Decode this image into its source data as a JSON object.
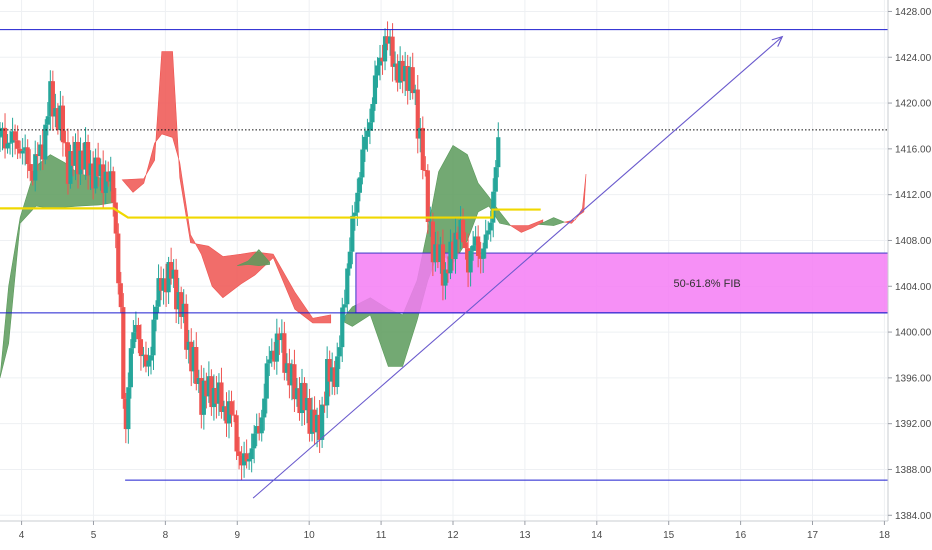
{
  "chart_data": {
    "type": "candlestick",
    "instrument_view": "price chart with Ichimoku cloud",
    "y_axis": {
      "ticks": [
        1428.0,
        1424.0,
        1420.0,
        1416.0,
        1412.0,
        1408.0,
        1404.0,
        1400.0,
        1396.0,
        1392.0,
        1388.0,
        1384.0
      ],
      "tick_labels": [
        "1428.00",
        "1424.00",
        "1420.00",
        "1416.00",
        "1412.00",
        "1408.00",
        "1404.00",
        "1400.00",
        "1396.00",
        "1392.00",
        "1388.00",
        "1384.00"
      ],
      "range": [
        1383.5,
        1429.0
      ]
    },
    "x_axis": {
      "tick_labels": [
        "4",
        "5",
        "8",
        "9",
        "10",
        "11",
        "12",
        "13",
        "14",
        "15",
        "16",
        "17",
        "18"
      ],
      "tick_positions": [
        0.5,
        1.5,
        2.5,
        3.5,
        4.5,
        5.5,
        6.5,
        7.5,
        8.5,
        9.5,
        10.5,
        11.5,
        12.5
      ],
      "range": [
        0.2,
        12.55
      ]
    },
    "levels": [
      {
        "name": "resistance",
        "value": 1426.41,
        "label": "1426.41",
        "style": "solid",
        "color": "#1c1ccf"
      },
      {
        "name": "current-price",
        "value": 1417.66,
        "label": "1417.66",
        "style": "dotted",
        "color": "#111111"
      },
      {
        "name": "support-high",
        "value": 1401.68,
        "label": "1401.68",
        "style": "solid",
        "color": "#1c1ccf"
      },
      {
        "name": "support-low",
        "value": 1387.07,
        "label": "1387.07",
        "style": "solid",
        "color": "#1c1ccf",
        "x_start": 1.94
      }
    ],
    "fib_zone": {
      "label": "50-61.8% FIB",
      "y_top": 1406.9,
      "y_bottom": 1401.68,
      "x_start": 5.15,
      "color": "#f57cf5"
    },
    "trendline": {
      "points": [
        [
          3.72,
          1385.5
        ],
        [
          11.08,
          1425.8
        ]
      ],
      "arrow": true,
      "color": "#6a5acd"
    },
    "baseline": {
      "color": "#f0d800",
      "points": [
        [
          0.2,
          1410.8
        ],
        [
          1.78,
          1410.8
        ],
        [
          1.98,
          1410.0
        ],
        [
          3.65,
          1410.0
        ],
        [
          7.05,
          1410.0
        ],
        [
          7.05,
          1410.7
        ],
        [
          7.72,
          1410.7
        ]
      ]
    },
    "cloud_segments": [
      {
        "type": "bullish",
        "color": "#5b9a5b",
        "upper": [
          [
            0.2,
            1396
          ],
          [
            0.32,
            1404
          ],
          [
            0.48,
            1410
          ],
          [
            0.7,
            1414.5
          ],
          [
            0.9,
            1415.5
          ],
          [
            1.1,
            1414.8
          ],
          [
            1.3,
            1413.8
          ],
          [
            1.58,
            1413.5
          ],
          [
            1.78,
            1413.3
          ]
        ],
        "lower": [
          [
            0.2,
            1396
          ],
          [
            0.32,
            1399
          ],
          [
            0.48,
            1409.5
          ],
          [
            0.7,
            1411
          ],
          [
            0.9,
            1410.8
          ],
          [
            1.1,
            1410.9
          ],
          [
            1.3,
            1411
          ],
          [
            1.58,
            1411.1
          ],
          [
            1.78,
            1411.3
          ]
        ]
      },
      {
        "type": "bearish",
        "color": "#ef5350",
        "upper": [
          [
            1.9,
            1413.3
          ],
          [
            2.2,
            1413.4
          ],
          [
            2.35,
            1415
          ],
          [
            2.45,
            1424.5
          ],
          [
            2.6,
            1424.5
          ],
          [
            2.7,
            1413.5
          ],
          [
            2.85,
            1407.8
          ],
          [
            3.1,
            1407.5
          ],
          [
            3.3,
            1406.6
          ],
          [
            3.55,
            1406.8
          ],
          [
            3.75,
            1407.0
          ],
          [
            4.0,
            1406.8
          ],
          [
            4.3,
            1403.5
          ],
          [
            4.55,
            1401.2
          ],
          [
            4.8,
            1401.5
          ]
        ],
        "lower": [
          [
            1.9,
            1413.3
          ],
          [
            2.05,
            1412.2
          ],
          [
            2.2,
            1413.0
          ],
          [
            2.35,
            1416.5
          ],
          [
            2.45,
            1417.3
          ],
          [
            2.6,
            1417.0
          ],
          [
            2.7,
            1414.8
          ],
          [
            2.85,
            1408.5
          ],
          [
            3.0,
            1406.8
          ],
          [
            3.15,
            1404.0
          ],
          [
            3.3,
            1403.0
          ],
          [
            3.55,
            1404.2
          ],
          [
            3.75,
            1405.0
          ],
          [
            4.0,
            1406.5
          ],
          [
            4.3,
            1402.0
          ],
          [
            4.55,
            1400.8
          ],
          [
            4.8,
            1400.8
          ]
        ]
      },
      {
        "type": "bullish",
        "color": "#5b9a5b",
        "upper": [
          [
            3.5,
            1405.8
          ],
          [
            3.65,
            1406.2
          ],
          [
            3.8,
            1407.2
          ],
          [
            3.95,
            1406.1
          ]
        ],
        "lower": [
          [
            3.5,
            1405.8
          ],
          [
            3.65,
            1405.9
          ],
          [
            3.8,
            1405.8
          ],
          [
            3.95,
            1405.9
          ]
        ]
      },
      {
        "type": "bullish",
        "color": "#5b9a5b",
        "upper": [
          [
            4.95,
            1401.0
          ],
          [
            5.1,
            1402.2
          ],
          [
            5.35,
            1403.0
          ],
          [
            5.6,
            1402.0
          ],
          [
            5.8,
            1401.5
          ],
          [
            6.0,
            1404.5
          ],
          [
            6.15,
            1409.0
          ],
          [
            6.3,
            1414.0
          ],
          [
            6.5,
            1416.3
          ],
          [
            6.7,
            1415.5
          ],
          [
            6.85,
            1413.0
          ],
          [
            7.0,
            1411.8
          ],
          [
            7.15,
            1410.5
          ],
          [
            7.3,
            1409.3
          ]
        ],
        "lower": [
          [
            4.95,
            1401.0
          ],
          [
            5.1,
            1400.5
          ],
          [
            5.35,
            1401.5
          ],
          [
            5.6,
            1397.0
          ],
          [
            5.8,
            1397.0
          ],
          [
            6.0,
            1401.0
          ],
          [
            6.15,
            1404.5
          ],
          [
            6.3,
            1407.0
          ],
          [
            6.5,
            1406.0
          ],
          [
            6.7,
            1408.0
          ],
          [
            6.85,
            1410.5
          ],
          [
            7.0,
            1411.0
          ],
          [
            7.15,
            1409.5
          ],
          [
            7.3,
            1409.3
          ]
        ]
      },
      {
        "type": "bearish",
        "color": "#ef5350",
        "upper": [
          [
            7.3,
            1409.3
          ],
          [
            7.55,
            1409.3
          ],
          [
            7.75,
            1409.8
          ]
        ],
        "lower": [
          [
            7.3,
            1409.3
          ],
          [
            7.45,
            1408.7
          ],
          [
            7.6,
            1409.1
          ],
          [
            7.75,
            1409.6
          ]
        ]
      },
      {
        "type": "bullish",
        "color": "#5b9a5b",
        "upper": [
          [
            7.7,
            1409.4
          ],
          [
            7.9,
            1410.0
          ],
          [
            8.05,
            1409.6
          ]
        ],
        "lower": [
          [
            7.7,
            1409.4
          ],
          [
            7.9,
            1409.3
          ],
          [
            8.05,
            1409.6
          ]
        ]
      },
      {
        "type": "bearish",
        "color": "#ef5350",
        "upper": [
          [
            8.05,
            1409.6
          ],
          [
            8.2,
            1409.8
          ],
          [
            8.3,
            1410.8
          ],
          [
            8.35,
            1413.8
          ]
        ],
        "lower": [
          [
            8.05,
            1409.6
          ],
          [
            8.15,
            1409.5
          ],
          [
            8.25,
            1410.2
          ],
          [
            8.32,
            1410.5
          ]
        ]
      }
    ]
  }
}
